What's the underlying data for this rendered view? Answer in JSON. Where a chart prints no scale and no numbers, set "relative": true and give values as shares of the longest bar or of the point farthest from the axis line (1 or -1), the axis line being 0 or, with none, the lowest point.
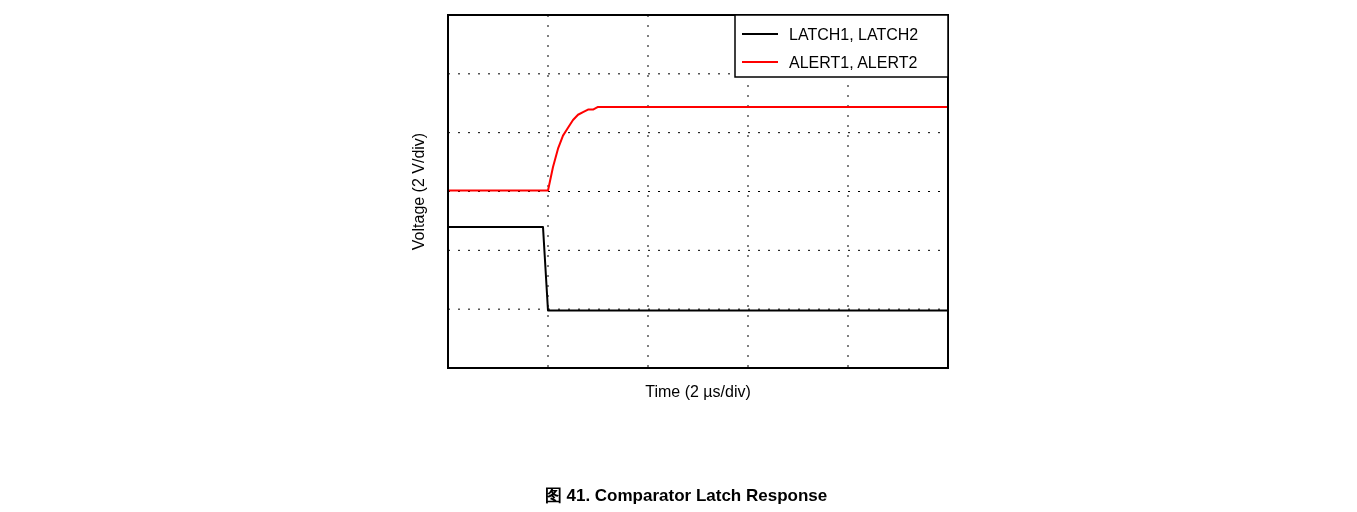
{
  "chart_data": {
    "type": "line",
    "title": "图 41. Comparator Latch Response",
    "xlabel": "Time (2 µs/div)",
    "ylabel": "Voltage (2 V/div)",
    "relative": true,
    "grid": true,
    "legend": "top right",
    "categories": [
      null,
      null,
      null,
      null,
      null,
      null,
      null,
      null,
      null,
      null,
      null,
      null,
      null,
      null,
      null,
      null,
      null,
      null,
      null,
      null,
      null,
      null,
      null,
      null,
      null,
      null,
      null,
      null,
      null,
      null,
      null,
      null,
      null,
      null,
      null,
      null,
      null,
      null,
      null,
      null,
      null,
      null,
      null,
      null,
      null,
      null,
      null,
      null,
      null,
      null,
      null,
      null,
      null,
      null,
      null,
      null,
      null,
      null,
      null,
      null,
      null,
      null,
      null,
      null,
      null,
      null,
      null,
      null,
      null,
      null,
      null,
      null,
      null,
      null,
      null,
      null,
      null,
      null,
      null,
      null,
      null,
      null,
      null,
      null,
      null,
      null,
      null,
      null,
      null,
      null,
      null,
      null,
      null,
      null,
      null,
      null,
      null,
      null,
      null,
      null,
      null
    ],
    "series": [
      {
        "name": "LATCH1, LATCH2",
        "color": "#000000",
        "values": [
          0.54,
          0.54,
          0.54,
          0.54,
          0.54,
          0.54,
          0.54,
          0.54,
          0.54,
          0.54,
          0.54,
          0.54,
          0.54,
          0.54,
          0.54,
          0.54,
          0.54,
          0.54,
          0.54,
          0.54,
          0.22,
          0.22,
          0.22,
          0.22,
          0.22,
          0.22,
          0.22,
          0.22,
          0.22,
          0.22,
          0.22,
          0.22,
          0.22,
          0.22,
          0.22,
          0.22,
          0.22,
          0.22,
          0.22,
          0.22,
          0.22,
          0.22,
          0.22,
          0.22,
          0.22,
          0.22,
          0.22,
          0.22,
          0.22,
          0.22,
          0.22,
          0.22,
          0.22,
          0.22,
          0.22,
          0.22,
          0.22,
          0.22,
          0.22,
          0.22,
          0.22,
          0.22,
          0.22,
          0.22,
          0.22,
          0.22,
          0.22,
          0.22,
          0.22,
          0.22,
          0.22,
          0.22,
          0.22,
          0.22,
          0.22,
          0.22,
          0.22,
          0.22,
          0.22,
          0.22,
          0.22,
          0.22,
          0.22,
          0.22,
          0.22,
          0.22,
          0.22,
          0.22,
          0.22,
          0.22,
          0.22,
          0.22,
          0.22,
          0.22,
          0.22,
          0.22,
          0.22,
          0.22,
          0.22,
          0.22,
          0.22
        ]
      },
      {
        "name": "ALERT1, ALERT2",
        "color": "#ff0000",
        "values": [
          0.68,
          0.68,
          0.68,
          0.68,
          0.68,
          0.68,
          0.68,
          0.68,
          0.68,
          0.68,
          0.68,
          0.68,
          0.68,
          0.68,
          0.68,
          0.68,
          0.68,
          0.68,
          0.68,
          0.68,
          0.68,
          0.77,
          0.84,
          0.89,
          0.92,
          0.95,
          0.97,
          0.98,
          0.99,
          0.99,
          1,
          1,
          1,
          1,
          1,
          1,
          1,
          1,
          1,
          1,
          1,
          1,
          1,
          1,
          1,
          1,
          1,
          1,
          1,
          1,
          1,
          1,
          1,
          1,
          1,
          1,
          1,
          1,
          1,
          1,
          1,
          1,
          1,
          1,
          1,
          1,
          1,
          1,
          1,
          1,
          1,
          1,
          1,
          1,
          1,
          1,
          1,
          1,
          1,
          1,
          1,
          1,
          1,
          1,
          1,
          1,
          1,
          1,
          1,
          1,
          1,
          1,
          1,
          1,
          1,
          1,
          1,
          1,
          1,
          1,
          1
        ]
      }
    ]
  }
}
